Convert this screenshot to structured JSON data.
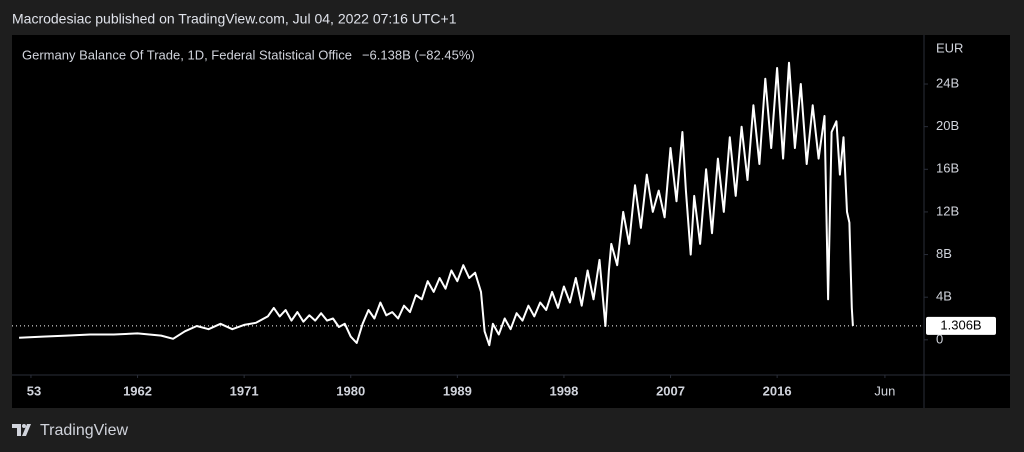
{
  "header": "Macrodesiac published on TradingView.com, Jul 04, 2022 07:16 UTC+1",
  "footer": "TradingView",
  "chart_data": {
    "type": "line",
    "title": "Germany Balance Of Trade, 1D, Federal Statistical Office",
    "change": "−6.138B (−82.45%)",
    "y_axis_label": "EUR",
    "color": "#ffffff",
    "last_label": {
      "value": 1.306,
      "label": "1.306B"
    },
    "xlim": [
      1951.4,
      2028.4
    ],
    "xticks": [
      {
        "value": 1953,
        "label": "53"
      },
      1962,
      1971,
      1980,
      1989,
      1998,
      2007,
      2016,
      {
        "value": 2025.1,
        "label": "Jun"
      }
    ],
    "ylim": [
      -3.3,
      28.6
    ],
    "yticks": [
      0,
      {
        "value": 4,
        "label": "4B"
      },
      {
        "value": 8,
        "label": "8B"
      },
      {
        "value": 12,
        "label": "12B"
      },
      {
        "value": 16,
        "label": "16B"
      },
      {
        "value": 20,
        "label": "20B"
      },
      {
        "value": 24,
        "label": "24B"
      }
    ],
    "x": [
      1952,
      1954,
      1956,
      1958,
      1960,
      1962,
      1964,
      1965,
      1966,
      1967,
      1968,
      1969,
      1970,
      1971,
      1972,
      1973,
      1973.5,
      1974,
      1974.5,
      1975,
      1975.5,
      1976,
      1976.5,
      1977,
      1977.5,
      1978,
      1978.5,
      1979,
      1979.5,
      1980,
      1980.5,
      1981,
      1981.5,
      1982,
      1982.5,
      1983,
      1983.5,
      1984,
      1984.5,
      1985,
      1985.5,
      1986,
      1986.5,
      1987,
      1987.5,
      1988,
      1988.5,
      1989,
      1989.5,
      1990,
      1990.5,
      1991,
      1991.3,
      1991.7,
      1992,
      1992.5,
      1993,
      1993.5,
      1994,
      1994.5,
      1995,
      1995.5,
      1996,
      1996.5,
      1997,
      1997.5,
      1998,
      1998.5,
      1999,
      1999.5,
      2000,
      2000.5,
      2001,
      2001.5,
      2001.8,
      2002,
      2002.5,
      2003,
      2003.5,
      2004,
      2004.5,
      2005,
      2005.5,
      2006,
      2006.5,
      2007,
      2007.5,
      2008,
      2008.3,
      2008.7,
      2009,
      2009.5,
      2010,
      2010.5,
      2011,
      2011.5,
      2012,
      2012.5,
      2013,
      2013.5,
      2014,
      2014.5,
      2015,
      2015.5,
      2016,
      2016.5,
      2017,
      2017.5,
      2018,
      2018.5,
      2019,
      2019.5,
      2020,
      2020.3,
      2020.6,
      2021,
      2021.3,
      2021.6,
      2021.9,
      2022.1,
      2022.3,
      2022.4
    ],
    "values": [
      0.2,
      0.3,
      0.4,
      0.5,
      0.5,
      0.6,
      0.4,
      0.1,
      0.8,
      1.3,
      1.0,
      1.5,
      1.0,
      1.4,
      1.6,
      2.2,
      3.0,
      2.2,
      2.8,
      1.8,
      2.6,
      1.7,
      2.3,
      1.8,
      2.5,
      1.8,
      2.0,
      1.2,
      1.5,
      0.3,
      -0.3,
      1.5,
      2.8,
      2.0,
      3.5,
      2.3,
      2.6,
      2.0,
      3.2,
      2.6,
      4.2,
      3.8,
      5.5,
      4.5,
      5.8,
      4.8,
      6.5,
      5.5,
      7.0,
      5.8,
      6.3,
      4.5,
      0.8,
      -0.5,
      1.5,
      0.5,
      2.0,
      1.0,
      2.5,
      1.8,
      3.2,
      2.2,
      3.5,
      2.8,
      4.5,
      3.0,
      5.0,
      3.5,
      5.8,
      3.2,
      6.5,
      3.8,
      7.5,
      1.3,
      6.5,
      9.0,
      7.0,
      12.0,
      9.0,
      14.5,
      10.5,
      15.5,
      12.0,
      14.0,
      11.5,
      18.0,
      13.0,
      19.5,
      14.0,
      8.0,
      13.5,
      9.0,
      16.0,
      10.0,
      17.0,
      12.0,
      19.0,
      13.5,
      20.0,
      15.0,
      22.0,
      16.5,
      24.5,
      18.0,
      25.5,
      17.0,
      26.0,
      18.0,
      24.0,
      16.5,
      22.0,
      17.0,
      21.0,
      3.8,
      19.5,
      20.5,
      15.5,
      19.0,
      12.0,
      11.0,
      3.0,
      1.306
    ]
  }
}
